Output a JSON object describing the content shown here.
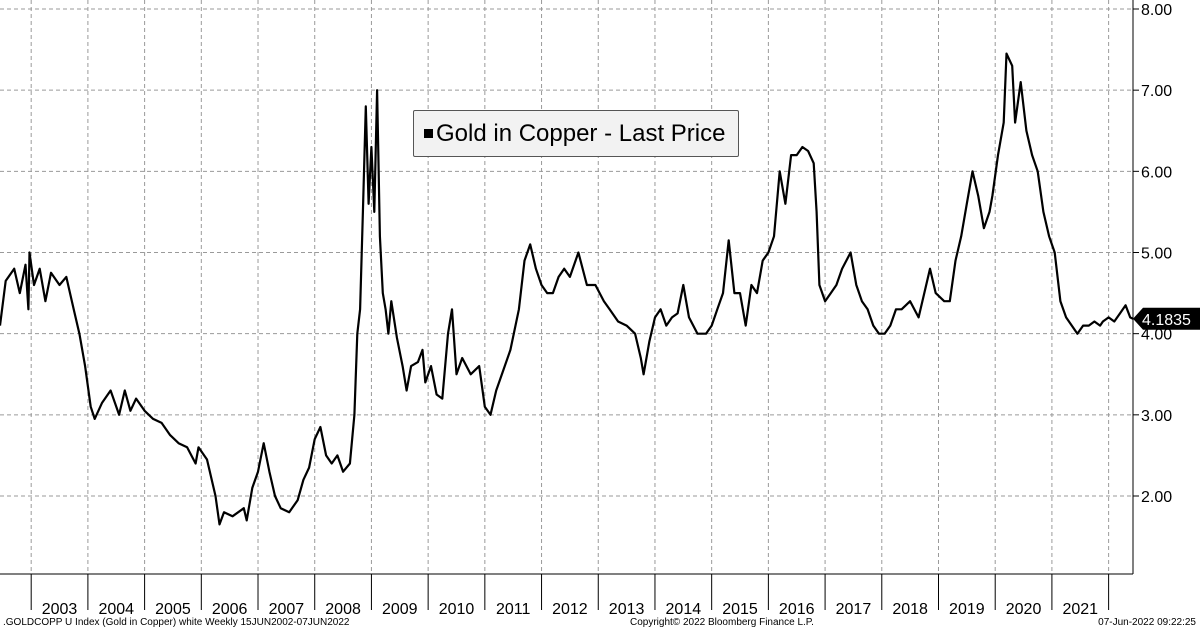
{
  "chart_data": {
    "type": "line",
    "x_axis_labels": [
      "2003",
      "2004",
      "2005",
      "2006",
      "2007",
      "2008",
      "2009",
      "2010",
      "2011",
      "2012",
      "2013",
      "2014",
      "2015",
      "2016",
      "2017",
      "2018",
      "2019",
      "2020",
      "2021"
    ],
    "y_ticks": [
      "8.00",
      "7.00",
      "6.00",
      "5.00",
      "4.00",
      "3.00",
      "2.00"
    ],
    "ylim": [
      1.0,
      8.0
    ],
    "xlim": [
      2002.45,
      2022.43
    ],
    "grid": "dashed",
    "legend_position": "top-center",
    "series": [
      {
        "name": "Gold in Copper - Last Price",
        "color": "#000000",
        "points": [
          [
            2002.45,
            4.1
          ],
          [
            2002.55,
            4.65
          ],
          [
            2002.7,
            4.8
          ],
          [
            2002.8,
            4.5
          ],
          [
            2002.9,
            4.85
          ],
          [
            2002.95,
            4.3
          ],
          [
            2002.97,
            5.0
          ],
          [
            2003.05,
            4.6
          ],
          [
            2003.15,
            4.8
          ],
          [
            2003.25,
            4.4
          ],
          [
            2003.35,
            4.75
          ],
          [
            2003.5,
            4.6
          ],
          [
            2003.62,
            4.7
          ],
          [
            2003.75,
            4.3
          ],
          [
            2003.85,
            4.0
          ],
          [
            2003.95,
            3.6
          ],
          [
            2004.05,
            3.1
          ],
          [
            2004.12,
            2.95
          ],
          [
            2004.25,
            3.15
          ],
          [
            2004.4,
            3.3
          ],
          [
            2004.55,
            3.0
          ],
          [
            2004.65,
            3.3
          ],
          [
            2004.75,
            3.05
          ],
          [
            2004.85,
            3.2
          ],
          [
            2005.0,
            3.05
          ],
          [
            2005.15,
            2.95
          ],
          [
            2005.3,
            2.9
          ],
          [
            2005.45,
            2.75
          ],
          [
            2005.6,
            2.65
          ],
          [
            2005.75,
            2.6
          ],
          [
            2005.9,
            2.4
          ],
          [
            2005.95,
            2.6
          ],
          [
            2006.1,
            2.45
          ],
          [
            2006.25,
            2.0
          ],
          [
            2006.32,
            1.65
          ],
          [
            2006.4,
            1.8
          ],
          [
            2006.55,
            1.75
          ],
          [
            2006.75,
            1.85
          ],
          [
            2006.8,
            1.7
          ],
          [
            2006.9,
            2.1
          ],
          [
            2007.0,
            2.3
          ],
          [
            2007.1,
            2.65
          ],
          [
            2007.2,
            2.3
          ],
          [
            2007.3,
            2.0
          ],
          [
            2007.4,
            1.85
          ],
          [
            2007.55,
            1.8
          ],
          [
            2007.7,
            1.95
          ],
          [
            2007.8,
            2.2
          ],
          [
            2007.9,
            2.35
          ],
          [
            2008.0,
            2.7
          ],
          [
            2008.1,
            2.85
          ],
          [
            2008.2,
            2.5
          ],
          [
            2008.3,
            2.4
          ],
          [
            2008.4,
            2.5
          ],
          [
            2008.5,
            2.3
          ],
          [
            2008.62,
            2.4
          ],
          [
            2008.7,
            3.0
          ],
          [
            2008.75,
            4.0
          ],
          [
            2008.8,
            4.3
          ],
          [
            2008.85,
            5.5
          ],
          [
            2008.9,
            6.8
          ],
          [
            2008.95,
            5.6
          ],
          [
            2009.0,
            6.3
          ],
          [
            2009.05,
            5.5
          ],
          [
            2009.1,
            7.0
          ],
          [
            2009.15,
            5.2
          ],
          [
            2009.2,
            4.5
          ],
          [
            2009.25,
            4.3
          ],
          [
            2009.3,
            4.0
          ],
          [
            2009.35,
            4.4
          ],
          [
            2009.45,
            3.95
          ],
          [
            2009.55,
            3.6
          ],
          [
            2009.62,
            3.3
          ],
          [
            2009.7,
            3.6
          ],
          [
            2009.82,
            3.65
          ],
          [
            2009.9,
            3.8
          ],
          [
            2009.95,
            3.4
          ],
          [
            2010.05,
            3.6
          ],
          [
            2010.15,
            3.25
          ],
          [
            2010.25,
            3.2
          ],
          [
            2010.35,
            4.0
          ],
          [
            2010.42,
            4.3
          ],
          [
            2010.5,
            3.5
          ],
          [
            2010.6,
            3.7
          ],
          [
            2010.75,
            3.5
          ],
          [
            2010.9,
            3.6
          ],
          [
            2011.0,
            3.1
          ],
          [
            2011.1,
            3.0
          ],
          [
            2011.2,
            3.3
          ],
          [
            2011.3,
            3.5
          ],
          [
            2011.45,
            3.8
          ],
          [
            2011.6,
            4.3
          ],
          [
            2011.7,
            4.9
          ],
          [
            2011.8,
            5.1
          ],
          [
            2011.9,
            4.8
          ],
          [
            2012.0,
            4.6
          ],
          [
            2012.1,
            4.5
          ],
          [
            2012.2,
            4.5
          ],
          [
            2012.3,
            4.7
          ],
          [
            2012.4,
            4.8
          ],
          [
            2012.5,
            4.7
          ],
          [
            2012.65,
            5.0
          ],
          [
            2012.8,
            4.6
          ],
          [
            2012.95,
            4.6
          ],
          [
            2013.1,
            4.4
          ],
          [
            2013.2,
            4.3
          ],
          [
            2013.35,
            4.15
          ],
          [
            2013.5,
            4.1
          ],
          [
            2013.65,
            4.0
          ],
          [
            2013.75,
            3.7
          ],
          [
            2013.8,
            3.5
          ],
          [
            2013.9,
            3.9
          ],
          [
            2014.0,
            4.2
          ],
          [
            2014.1,
            4.3
          ],
          [
            2014.2,
            4.1
          ],
          [
            2014.3,
            4.2
          ],
          [
            2014.4,
            4.25
          ],
          [
            2014.5,
            4.6
          ],
          [
            2014.6,
            4.2
          ],
          [
            2014.75,
            4.0
          ],
          [
            2014.9,
            4.0
          ],
          [
            2015.0,
            4.1
          ],
          [
            2015.1,
            4.3
          ],
          [
            2015.2,
            4.5
          ],
          [
            2015.3,
            5.15
          ],
          [
            2015.4,
            4.5
          ],
          [
            2015.5,
            4.5
          ],
          [
            2015.6,
            4.1
          ],
          [
            2015.7,
            4.6
          ],
          [
            2015.8,
            4.5
          ],
          [
            2015.9,
            4.9
          ],
          [
            2016.0,
            5.0
          ],
          [
            2016.1,
            5.2
          ],
          [
            2016.2,
            6.0
          ],
          [
            2016.3,
            5.6
          ],
          [
            2016.4,
            6.2
          ],
          [
            2016.5,
            6.2
          ],
          [
            2016.6,
            6.3
          ],
          [
            2016.7,
            6.25
          ],
          [
            2016.8,
            6.1
          ],
          [
            2016.85,
            5.5
          ],
          [
            2016.9,
            4.6
          ],
          [
            2017.0,
            4.4
          ],
          [
            2017.1,
            4.5
          ],
          [
            2017.2,
            4.6
          ],
          [
            2017.3,
            4.8
          ],
          [
            2017.45,
            5.0
          ],
          [
            2017.55,
            4.6
          ],
          [
            2017.65,
            4.4
          ],
          [
            2017.75,
            4.3
          ],
          [
            2017.85,
            4.1
          ],
          [
            2017.95,
            4.0
          ],
          [
            2018.05,
            4.0
          ],
          [
            2018.15,
            4.1
          ],
          [
            2018.25,
            4.3
          ],
          [
            2018.35,
            4.3
          ],
          [
            2018.5,
            4.4
          ],
          [
            2018.65,
            4.2
          ],
          [
            2018.75,
            4.5
          ],
          [
            2018.85,
            4.8
          ],
          [
            2018.95,
            4.5
          ],
          [
            2019.1,
            4.4
          ],
          [
            2019.2,
            4.4
          ],
          [
            2019.3,
            4.9
          ],
          [
            2019.4,
            5.2
          ],
          [
            2019.5,
            5.6
          ],
          [
            2019.6,
            6.0
          ],
          [
            2019.7,
            5.7
          ],
          [
            2019.8,
            5.3
          ],
          [
            2019.9,
            5.5
          ],
          [
            2019.95,
            5.7
          ],
          [
            2020.05,
            6.2
          ],
          [
            2020.15,
            6.6
          ],
          [
            2020.2,
            7.45
          ],
          [
            2020.3,
            7.3
          ],
          [
            2020.35,
            6.6
          ],
          [
            2020.45,
            7.1
          ],
          [
            2020.55,
            6.5
          ],
          [
            2020.65,
            6.2
          ],
          [
            2020.75,
            6.0
          ],
          [
            2020.85,
            5.5
          ],
          [
            2020.95,
            5.2
          ],
          [
            2021.05,
            5.0
          ],
          [
            2021.15,
            4.4
          ],
          [
            2021.25,
            4.2
          ],
          [
            2021.35,
            4.1
          ],
          [
            2021.45,
            4.0
          ],
          [
            2021.55,
            4.1
          ],
          [
            2021.65,
            4.1
          ],
          [
            2021.75,
            4.15
          ],
          [
            2021.85,
            4.1
          ],
          [
            2021.9,
            4.15
          ],
          [
            2022.0,
            4.2
          ],
          [
            2022.1,
            4.15
          ],
          [
            2022.2,
            4.25
          ],
          [
            2022.3,
            4.35
          ],
          [
            2022.38,
            4.2
          ],
          [
            2022.43,
            4.1835
          ]
        ]
      }
    ],
    "last_value_label": "4.1835"
  },
  "legend": {
    "label": "Gold in Copper - Last Price"
  },
  "footer": {
    "left": ".GOLDCOPP U Index (Gold in Copper) white  Weekly 15JUN2002-07JUN2022",
    "center": "Copyright© 2022 Bloomberg Finance L.P.",
    "right": "07-Jun-2022 09:22:25"
  }
}
